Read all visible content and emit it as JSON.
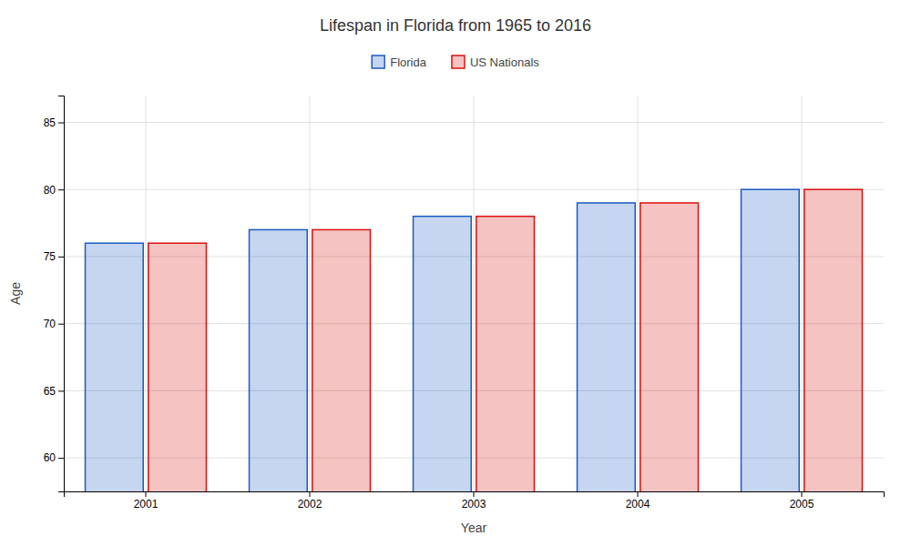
{
  "chart_data": {
    "type": "bar",
    "title": "Lifespan in Florida from 1965 to 2016",
    "xlabel": "Year",
    "ylabel": "Age",
    "categories": [
      "2001",
      "2002",
      "2003",
      "2004",
      "2005"
    ],
    "series": [
      {
        "name": "Florida",
        "color": "#1a5bc4",
        "values": [
          76,
          77,
          78,
          79,
          80
        ]
      },
      {
        "name": "US Nationals",
        "color": "#dd1111",
        "values": [
          76,
          77,
          78,
          79,
          80
        ]
      }
    ],
    "ylim": [
      57.5,
      87
    ],
    "yticks": [
      60,
      65,
      70,
      75,
      80,
      85
    ],
    "grid": true,
    "legend": "top"
  }
}
